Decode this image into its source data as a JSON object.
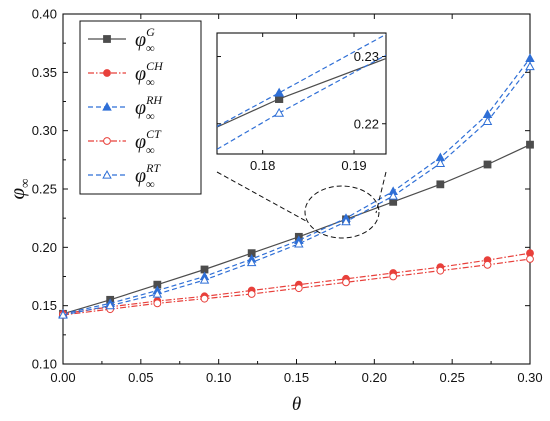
{
  "chart_data": [
    {
      "type": "line",
      "xlabel": "θ",
      "ylabel": "φ∞",
      "xlim": [
        0,
        0.3
      ],
      "ylim": [
        0.1,
        0.4
      ],
      "xticks": [
        0.0,
        0.05,
        0.1,
        0.15,
        0.2,
        0.25,
        0.3
      ],
      "yticks": [
        0.1,
        0.15,
        0.2,
        0.25,
        0.3,
        0.35,
        0.4
      ],
      "xtick_labels": [
        "0.00",
        "0.05",
        "0.10",
        "0.15",
        "0.20",
        "0.25",
        "0.30"
      ],
      "ytick_labels": [
        "0.10",
        "0.15",
        "0.20",
        "0.25",
        "0.30",
        "0.35",
        "0.40"
      ],
      "grid": false,
      "legend_position": "top-left",
      "series": [
        {
          "name": "φ∞^G",
          "base": "φ",
          "sub": "∞",
          "sup": "G",
          "color": "#4d4d4d",
          "dash": "solid",
          "marker": "square-filled",
          "x": [
            0.0,
            0.0303,
            0.0606,
            0.0909,
            0.1212,
            0.1515,
            0.1818,
            0.2121,
            0.2424,
            0.2727,
            0.3
          ],
          "y": [
            0.143,
            0.155,
            0.168,
            0.181,
            0.195,
            0.209,
            0.224,
            0.239,
            0.254,
            0.271,
            0.288
          ]
        },
        {
          "name": "φ∞^CH",
          "base": "φ",
          "sub": "∞",
          "sup": "CH",
          "color": "#e8403b",
          "dash": "dashdot",
          "marker": "circle-filled",
          "x": [
            0.0,
            0.0303,
            0.0606,
            0.0909,
            0.1212,
            0.1515,
            0.1818,
            0.2121,
            0.2424,
            0.2727,
            0.3
          ],
          "y": [
            0.143,
            0.149,
            0.154,
            0.158,
            0.163,
            0.168,
            0.173,
            0.178,
            0.183,
            0.189,
            0.195
          ]
        },
        {
          "name": "φ∞^RH",
          "base": "φ",
          "sub": "∞",
          "sup": "RH",
          "color": "#2f6fd6",
          "dash": "dashed",
          "marker": "triangle-filled",
          "x": [
            0.0,
            0.0303,
            0.0606,
            0.0909,
            0.1212,
            0.1515,
            0.1818,
            0.2121,
            0.2424,
            0.2727,
            0.3
          ],
          "y": [
            0.143,
            0.152,
            0.163,
            0.175,
            0.19,
            0.206,
            0.225,
            0.248,
            0.277,
            0.314,
            0.362
          ]
        },
        {
          "name": "φ∞^CT",
          "base": "φ",
          "sub": "∞",
          "sup": "CT",
          "color": "#e8403b",
          "dash": "dashdot",
          "marker": "circle-open",
          "x": [
            0.0,
            0.0303,
            0.0606,
            0.0909,
            0.1212,
            0.1515,
            0.1818,
            0.2121,
            0.2424,
            0.2727,
            0.3
          ],
          "y": [
            0.142,
            0.147,
            0.152,
            0.156,
            0.16,
            0.165,
            0.17,
            0.175,
            0.18,
            0.185,
            0.19
          ]
        },
        {
          "name": "φ∞^RT",
          "base": "φ",
          "sub": "∞",
          "sup": "RT",
          "color": "#2f6fd6",
          "dash": "dashed",
          "marker": "triangle-open",
          "x": [
            0.0,
            0.0303,
            0.0606,
            0.0909,
            0.1212,
            0.1515,
            0.1818,
            0.2121,
            0.2424,
            0.2727,
            0.3
          ],
          "y": [
            0.142,
            0.15,
            0.16,
            0.172,
            0.187,
            0.203,
            0.222,
            0.244,
            0.272,
            0.308,
            0.355
          ]
        }
      ]
    },
    {
      "type": "line",
      "inset": true,
      "xlim": [
        0.175,
        0.1935
      ],
      "ylim": [
        0.2155,
        0.2335
      ],
      "xticks": [
        0.18,
        0.19
      ],
      "yticks": [
        0.22,
        0.23
      ],
      "xtick_labels": [
        "0.18",
        "0.19"
      ],
      "ytick_labels": [
        "0.22",
        "0.23"
      ],
      "series": [
        {
          "name": "φ∞^G",
          "x": [
            0.175,
            0.1818,
            0.1935
          ],
          "y": [
            0.2195,
            0.2237,
            0.2297
          ],
          "color": "#4d4d4d",
          "dash": "solid",
          "marker": "square-filled"
        },
        {
          "name": "φ∞^RH",
          "x": [
            0.175,
            0.1818,
            0.1935
          ],
          "y": [
            0.2196,
            0.2246,
            0.2333
          ],
          "color": "#2f6fd6",
          "dash": "dashed",
          "marker": "triangle-filled"
        },
        {
          "name": "φ∞^RT",
          "x": [
            0.175,
            0.1818,
            0.1935
          ],
          "y": [
            0.2162,
            0.2216,
            0.2302
          ],
          "color": "#2f6fd6",
          "dash": "dashed",
          "marker": "triangle-open"
        }
      ]
    }
  ]
}
